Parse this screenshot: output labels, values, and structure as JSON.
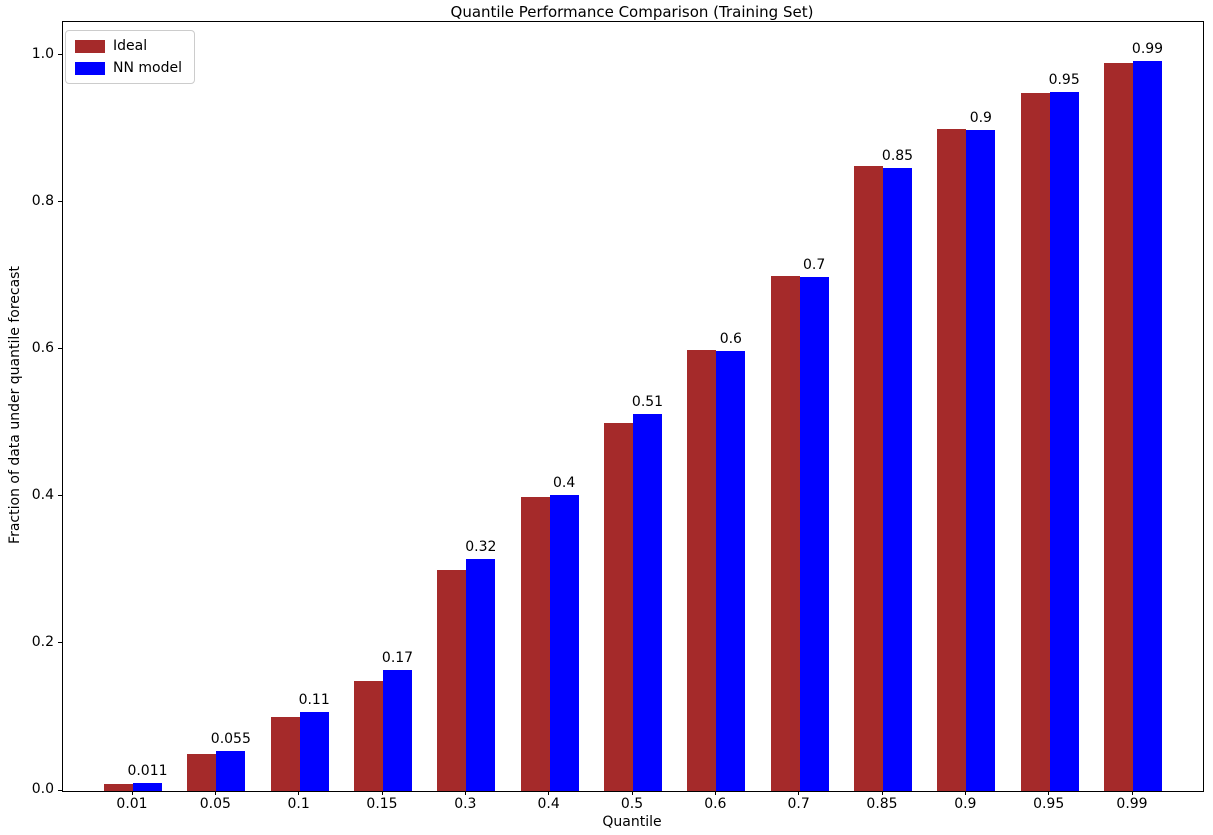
{
  "figure": {
    "title": "Quantile Performance Comparison (Training Set)",
    "xlabel": "Quantile",
    "ylabel": "Fraction of data under quantile forecast",
    "background_color": "#ffffff",
    "spine_color": "#000000"
  },
  "legend": {
    "position": "upper-left",
    "items": [
      {
        "label": "Ideal",
        "color": "#A52A2A"
      },
      {
        "label": "NN model",
        "color": "#0000FF"
      }
    ]
  },
  "chart_data": {
    "type": "bar",
    "title": "Quantile Performance Comparison (Training Set)",
    "xlabel": "Quantile",
    "ylabel": "Fraction of data under quantile forecast",
    "categories": [
      "0.01",
      "0.05",
      "0.1",
      "0.15",
      "0.3",
      "0.4",
      "0.5",
      "0.6",
      "0.7",
      "0.85",
      "0.9",
      "0.95",
      "0.99"
    ],
    "series": [
      {
        "name": "Ideal",
        "color": "#A52A2A",
        "values": [
          0.01,
          0.05,
          0.1,
          0.15,
          0.3,
          0.4,
          0.5,
          0.6,
          0.7,
          0.85,
          0.9,
          0.95,
          0.99
        ]
      },
      {
        "name": "NN model",
        "color": "#0000FF",
        "values": [
          0.011,
          0.055,
          0.107,
          0.165,
          0.315,
          0.403,
          0.513,
          0.598,
          0.699,
          0.848,
          0.899,
          0.951,
          0.993
        ],
        "bar_labels": [
          "0.011",
          "0.055",
          "0.11",
          "0.17",
          "0.32",
          "0.4",
          "0.51",
          "0.6",
          "0.7",
          "0.85",
          "0.9",
          "0.95",
          "0.99"
        ]
      }
    ],
    "ytick_labels": [
      "0.0",
      "0.2",
      "0.4",
      "0.6",
      "0.8",
      "1.0"
    ],
    "ylim": [
      0,
      1.046
    ],
    "grid": false,
    "legend_position": "upper left",
    "bar_label_series": "NN model"
  }
}
